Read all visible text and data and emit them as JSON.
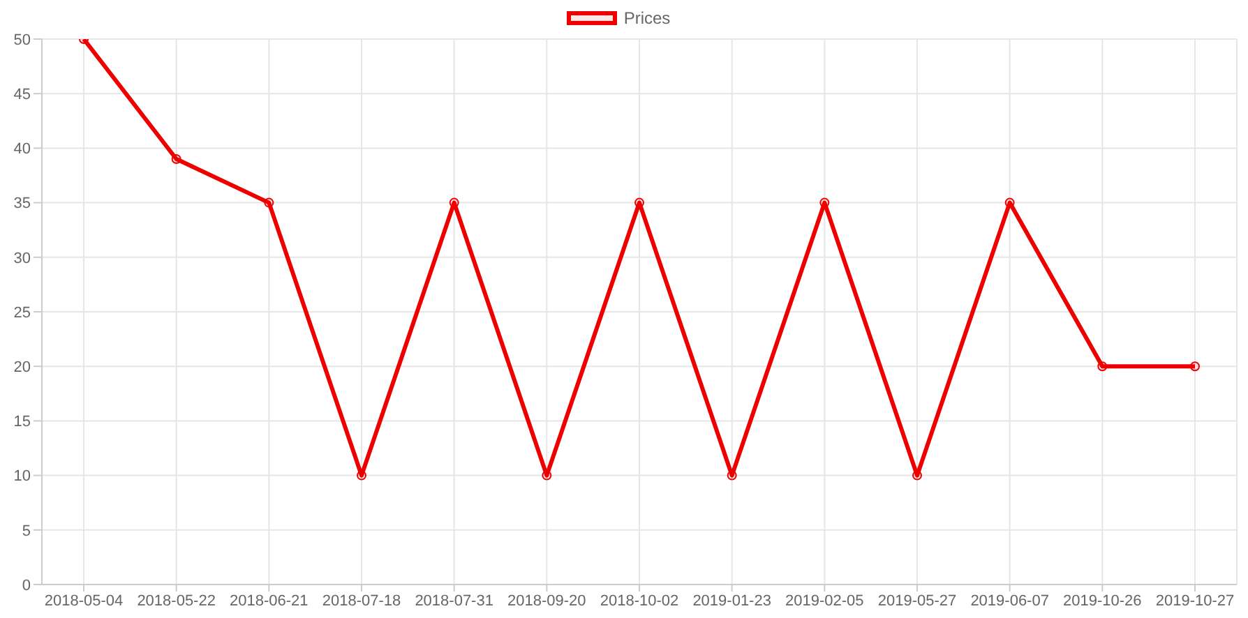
{
  "chart_data": {
    "type": "line",
    "categories": [
      "2018-05-04",
      "2018-05-22",
      "2018-06-21",
      "2018-07-18",
      "2018-07-31",
      "2018-09-20",
      "2018-10-02",
      "2019-01-23",
      "2019-02-05",
      "2019-05-27",
      "2019-06-07",
      "2019-10-26",
      "2019-10-27"
    ],
    "series": [
      {
        "name": "Prices",
        "color": "#ee0000",
        "values": [
          50,
          39,
          35,
          10,
          35,
          10,
          35,
          10,
          35,
          10,
          35,
          20,
          20
        ]
      }
    ],
    "ylim": [
      0,
      50
    ],
    "yticks": [
      0,
      5,
      10,
      15,
      20,
      25,
      30,
      35,
      40,
      45,
      50
    ],
    "grid": true,
    "legend": "top",
    "marker": "circle"
  }
}
